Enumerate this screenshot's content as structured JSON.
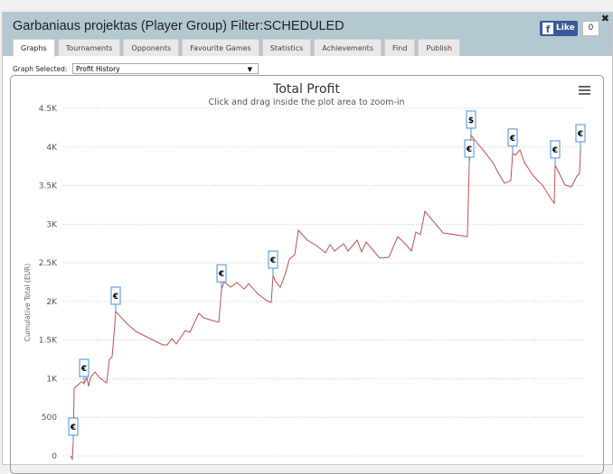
{
  "header": {
    "title": "Garbaniaus projektas (Player Group) Filter:SCHEDULED",
    "close": "✖",
    "like_label": "Like",
    "like_count": "0"
  },
  "tabs": [
    {
      "label": "Graphs",
      "active": true
    },
    {
      "label": "Tournaments"
    },
    {
      "label": "Opponents"
    },
    {
      "label": "Favourite Games"
    },
    {
      "label": "Statistics"
    },
    {
      "label": "Achievements"
    },
    {
      "label": "Find"
    },
    {
      "label": "Publish"
    }
  ],
  "graph_select": {
    "label": "Graph Selected:",
    "value": "Profit History"
  },
  "chart_data": {
    "type": "line",
    "title": "Total Profit",
    "subtitle": "Click and drag inside the plot area to zoom-in",
    "xlabel": "",
    "ylabel": "Cumulative Total (EUR)",
    "ylim": [
      0,
      4500
    ],
    "yticks": [
      {
        "v": 0,
        "label": "0"
      },
      {
        "v": 500,
        "label": "500"
      },
      {
        "v": 1000,
        "label": "1K"
      },
      {
        "v": 1500,
        "label": "1.5K"
      },
      {
        "v": 2000,
        "label": "2K"
      },
      {
        "v": 2500,
        "label": "2.5K"
      },
      {
        "v": 3000,
        "label": "3K"
      },
      {
        "v": 3500,
        "label": "3.5K"
      },
      {
        "v": 4000,
        "label": "4K"
      },
      {
        "v": 4500,
        "label": "4.5K"
      }
    ],
    "grid": true,
    "line_color": "#c0504d",
    "series": [
      {
        "x": [
          0,
          2,
          3,
          4,
          12,
          15,
          18,
          20,
          22,
          27,
          32,
          37,
          40,
          43,
          46,
          48,
          50,
          62,
          72,
          82,
          92,
          102,
          107,
          112,
          117,
          127,
          132,
          142,
          147,
          157,
          164,
          167,
          170,
          177,
          184,
          192,
          197,
          207,
          217,
          222,
          224,
          227,
          232,
          238,
          242,
          248,
          252,
          262,
          272,
          282,
          287,
          292,
          302,
          307,
          317,
          322,
          327,
          337,
          342,
          352,
          362,
          372,
          377,
          382,
          387,
          392,
          402,
          412,
          439,
          441,
          443,
          447,
          457,
          467,
          474,
          480,
          487,
          489,
          492,
          497,
          502,
          512,
          522,
          530,
          535,
          536,
          542,
          547,
          554,
          560,
          563,
          564
        ],
        "values": [
          0,
          -40,
          175,
          877,
          960,
          935,
          1015,
          900,
          1015,
          1087,
          1015,
          970,
          947,
          1250,
          1286,
          1555,
          1870,
          1718,
          1613,
          1555,
          1496,
          1438,
          1438,
          1520,
          1450,
          1625,
          1600,
          1847,
          1788,
          1753,
          1730,
          2160,
          2255,
          2185,
          2245,
          2160,
          2230,
          2100,
          2010,
          1987,
          2337,
          2255,
          2185,
          2373,
          2548,
          2606,
          2922,
          2794,
          2723,
          2630,
          2735,
          2653,
          2747,
          2653,
          2794,
          2641,
          2770,
          2630,
          2560,
          2572,
          2840,
          2723,
          2653,
          2899,
          2864,
          3168,
          3027,
          2887,
          2840,
          3775,
          4150,
          4090,
          3950,
          3800,
          3647,
          3530,
          3566,
          3917,
          3893,
          3962,
          3800,
          3623,
          3506,
          3355,
          3272,
          3764,
          3623,
          3506,
          3483,
          3623,
          3659,
          3974
        ]
      }
    ],
    "flags": [
      {
        "x": 3,
        "value": 175,
        "symbol": "€"
      },
      {
        "x": 15,
        "value": 935,
        "symbol": "€"
      },
      {
        "x": 50,
        "value": 1870,
        "symbol": "€"
      },
      {
        "x": 167,
        "value": 2160,
        "symbol": "€"
      },
      {
        "x": 224,
        "value": 2337,
        "symbol": "€"
      },
      {
        "x": 441,
        "value": 3775,
        "symbol": "€"
      },
      {
        "x": 443,
        "value": 4150,
        "symbol": "$"
      },
      {
        "x": 489,
        "value": 3917,
        "symbol": "€"
      },
      {
        "x": 536,
        "value": 3764,
        "symbol": "€"
      },
      {
        "x": 564,
        "value": 3974,
        "symbol": "€"
      }
    ],
    "menu_icon": "hamburger-icon"
  }
}
